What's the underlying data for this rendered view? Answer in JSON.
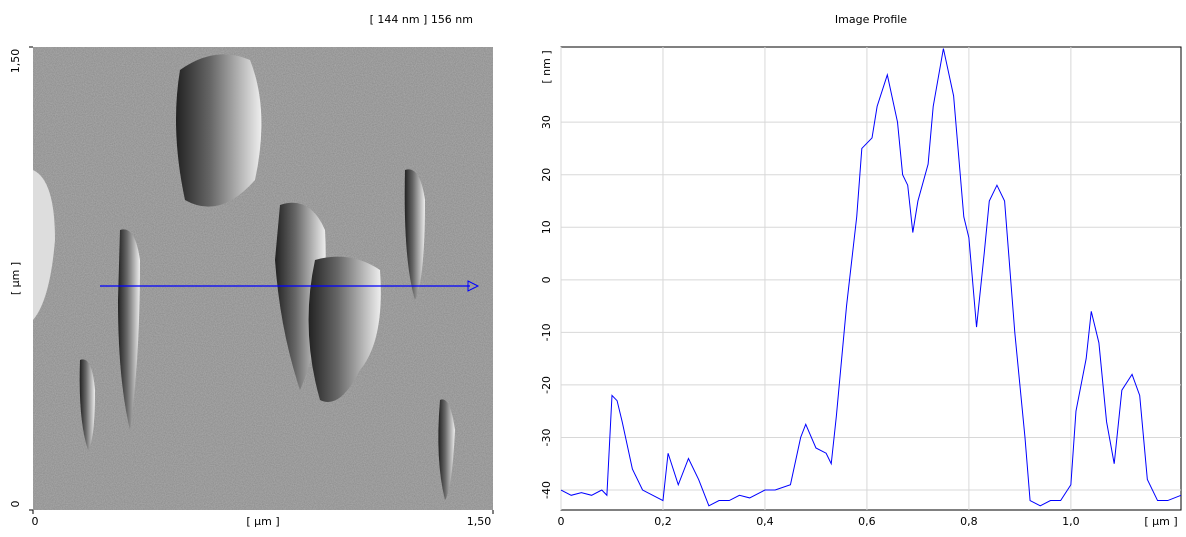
{
  "chart_data": [
    {
      "type": "image",
      "title": "[ 144 nm ] 156 nm",
      "x_label": "[ µm ]",
      "y_label": "[ µm ]",
      "xlim": [
        0,
        1.5
      ],
      "ylim": [
        0,
        1.5
      ],
      "xticks": [
        0,
        {
          "value": 1.5,
          "label": "1,50"
        }
      ],
      "yticks": [
        0,
        {
          "value": 1.5,
          "label": "1,50"
        }
      ]
    },
    {
      "type": "line",
      "title": "Image Profile",
      "x_label": "[ µm ]",
      "y_label": "[ nm ]",
      "xlim": [
        0,
        1.216
      ],
      "ylim": [
        -43.8,
        44.3
      ],
      "grid": true,
      "xticks": [
        0,
        {
          "value": 0.2,
          "label": "0,2"
        },
        {
          "value": 0.4,
          "label": "0,4"
        },
        {
          "value": 0.6,
          "label": "0,6"
        },
        {
          "value": 0.8,
          "label": "0,8"
        },
        {
          "value": 1.0,
          "label": "1,0"
        }
      ],
      "yticks": [
        -40,
        -30,
        -20,
        -10,
        0,
        10,
        20,
        30
      ],
      "series": [
        {
          "color": "#0000ff",
          "x": [
            0,
            0.02,
            0.04,
            0.06,
            0.08,
            0.09,
            0.1,
            0.11,
            0.12,
            0.14,
            0.16,
            0.18,
            0.2,
            0.21,
            0.22,
            0.23,
            0.25,
            0.27,
            0.29,
            0.31,
            0.33,
            0.35,
            0.37,
            0.4,
            0.42,
            0.45,
            0.47,
            0.48,
            0.5,
            0.52,
            0.53,
            0.54,
            0.56,
            0.58,
            0.59,
            0.61,
            0.62,
            0.64,
            0.66,
            0.67,
            0.68,
            0.69,
            0.7,
            0.72,
            0.73,
            0.75,
            0.77,
            0.79,
            0.8,
            0.815,
            0.83,
            0.84,
            0.855,
            0.87,
            0.89,
            0.91,
            0.92,
            0.94,
            0.96,
            0.98,
            1.0,
            1.01,
            1.03,
            1.04,
            1.055,
            1.07,
            1.085,
            1.1,
            1.12,
            1.135,
            1.15,
            1.17,
            1.19,
            1.216
          ],
          "values": [
            -40,
            -41,
            -40.5,
            -41,
            -40,
            -41,
            -22,
            -23,
            -27,
            -36,
            -40,
            -41,
            -42,
            -33,
            -36,
            -39,
            -34,
            -38,
            -43,
            -42,
            -42,
            -41,
            -41.5,
            -40,
            -40,
            -39,
            -30,
            -27.5,
            -32,
            -33,
            -35,
            -26,
            -5,
            12,
            25,
            27,
            33,
            39,
            30,
            20,
            18,
            9,
            15,
            22,
            33,
            44,
            35,
            12,
            8,
            -9,
            5,
            15,
            18,
            15,
            -10,
            -30,
            -42,
            -43,
            -42,
            -42,
            -39,
            -25,
            -15,
            -6,
            -12,
            -27,
            -35,
            -21,
            -18,
            -22,
            -38,
            -42,
            -42,
            -41
          ]
        }
      ]
    }
  ]
}
